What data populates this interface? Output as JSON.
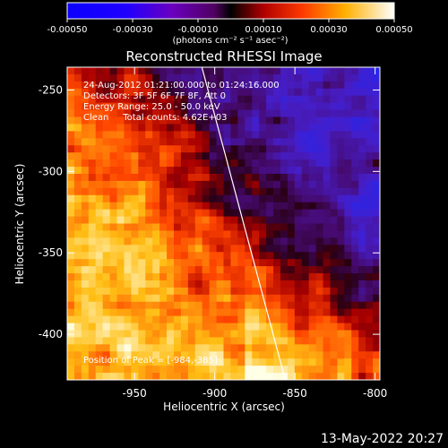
{
  "chart_data": {
    "type": "heatmap",
    "title": "Reconstructed RHESSI Image",
    "xlabel": "Heliocentric X (arcsec)",
    "ylabel": "Heliocentric Y (arcsec)",
    "xlim": [
      -992,
      -797
    ],
    "ylim": [
      -428,
      -236
    ],
    "x_ticks": [
      -950,
      -900,
      -850,
      -800
    ],
    "y_ticks": [
      -250,
      -300,
      -350,
      -400
    ],
    "x_tick_labels": [
      "-950",
      "-900",
      "-850",
      "-800"
    ],
    "y_tick_labels": [
      "-250",
      "-300",
      "-350",
      "-400"
    ],
    "colorbar": {
      "range": [
        -0.0005,
        0.0005
      ],
      "ticks": [
        -0.0005,
        -0.0003,
        -0.0001,
        0.0001,
        0.0003,
        0.0005
      ],
      "tick_labels": [
        "-0.00050",
        "-0.00030",
        "-0.00010",
        "0.00010",
        "0.00030",
        "0.00050"
      ],
      "unit_label": "(photons cm⁻² s⁻¹ asec⁻²)",
      "colors": [
        "#000000",
        "#1a00ff",
        "#7a00b0",
        "#c00000",
        "#ff6a00",
        "#ffe800",
        "#ffffff"
      ]
    },
    "annotations": {
      "time_range": "24-Aug-2012 01:21:00.000 to 01:24:16.000",
      "detectors": "Detectors: 3F 5F 6F 7F 8F, Att 0",
      "energy": "Energy Range: 25.0 - 50.0 keV",
      "clean": "Clean     Total counts: 4.62E+03",
      "peak": "Position of Peak = [-984,-385]"
    },
    "limb_line": {
      "x": [
        -908,
        -856
      ],
      "y": [
        -236,
        -428
      ]
    },
    "peak_position": {
      "x": -984,
      "y": -385
    }
  },
  "footer": {
    "timestamp": "13-May-2022 20:27"
  }
}
